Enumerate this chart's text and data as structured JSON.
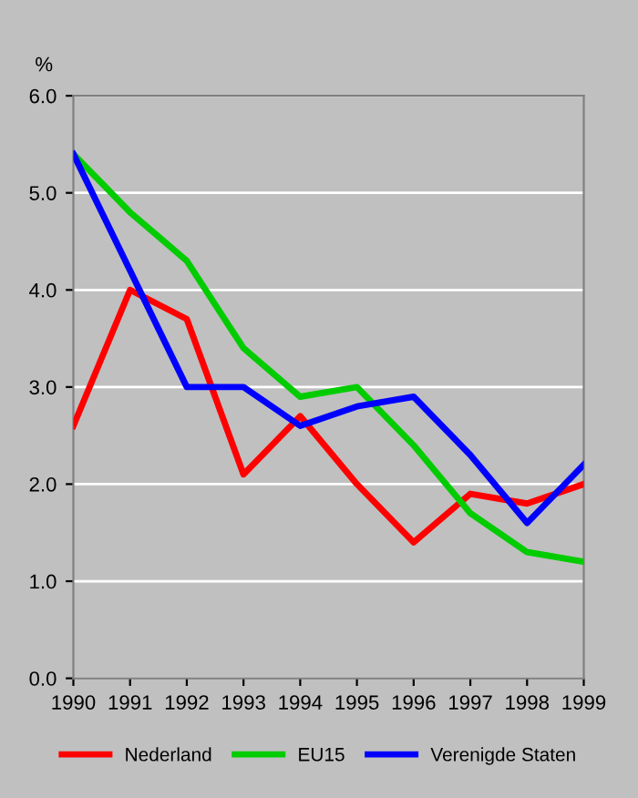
{
  "chart_data": {
    "type": "line",
    "ylabel": "%",
    "x": [
      1990,
      1991,
      1992,
      1993,
      1994,
      1995,
      1996,
      1997,
      1998,
      1999
    ],
    "series": [
      {
        "name": "Nederland",
        "color": "#ff0000",
        "values": [
          2.6,
          4.0,
          3.7,
          2.1,
          2.7,
          2.0,
          1.4,
          1.9,
          1.8,
          2.0
        ]
      },
      {
        "name": "EU15",
        "color": "#00cc00",
        "values": [
          5.4,
          4.8,
          4.3,
          3.4,
          2.9,
          3.0,
          2.4,
          1.7,
          1.3,
          1.2
        ]
      },
      {
        "name": "Verenigde Staten",
        "color": "#0000ff",
        "values": [
          5.4,
          4.2,
          3.0,
          3.0,
          2.6,
          2.8,
          2.9,
          2.3,
          1.6,
          2.2
        ]
      }
    ],
    "xlim": [
      1990,
      1999
    ],
    "xticks": [
      1990,
      1991,
      1992,
      1993,
      1994,
      1995,
      1996,
      1997,
      1998,
      1999
    ],
    "ylim": [
      0,
      6
    ],
    "yticks": [
      {
        "value": 0,
        "label": "0.0"
      },
      {
        "value": 1,
        "label": "1.0"
      },
      {
        "value": 2,
        "label": "2.0"
      },
      {
        "value": 3,
        "label": "3.0"
      },
      {
        "value": 4,
        "label": "4.0"
      },
      {
        "value": 5,
        "label": "5.0"
      },
      {
        "value": 6,
        "label": "6.0"
      }
    ],
    "grid": "y",
    "legend": "bottom"
  }
}
